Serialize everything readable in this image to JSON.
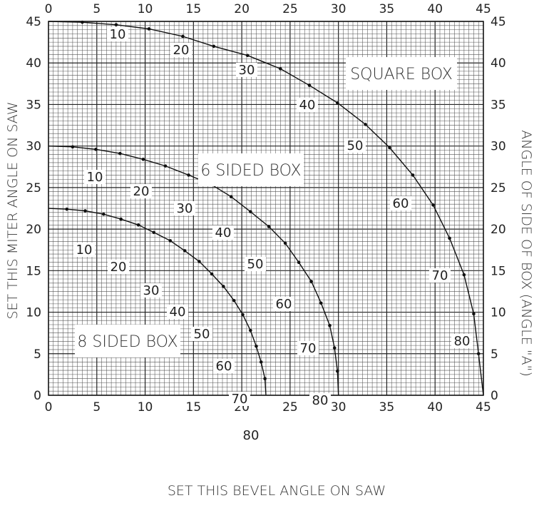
{
  "chart_data": {
    "type": "line",
    "xlabel": "SET THIS BEVEL ANGLE ON SAW",
    "ylabel_left": "SET THIS MITER ANGLE ON SAW",
    "ylabel_right": "ANGLE OF SIDE OF BOX (ANGLE \"A\")",
    "xlim": [
      0,
      45
    ],
    "ylim": [
      0,
      45
    ],
    "x_ticks": [
      "0",
      "5",
      "10",
      "15",
      "20",
      "25",
      "30",
      "35",
      "40",
      "45"
    ],
    "y_ticks": [
      "0",
      "5",
      "10",
      "15",
      "20",
      "25",
      "30",
      "35",
      "40",
      "45"
    ],
    "grid": true,
    "series": [
      {
        "name": "SQUARE BOX",
        "n_sides": 4,
        "angles_A": [
          10,
          20,
          30,
          40,
          50,
          60,
          70,
          80
        ],
        "points": [
          [
            0,
            45
          ],
          [
            3.5,
            44.9
          ],
          [
            7.0,
            44.6
          ],
          [
            10.4,
            44.1
          ],
          [
            13.9,
            43.2
          ],
          [
            17.1,
            42.0
          ],
          [
            20.6,
            40.9
          ],
          [
            24.0,
            39.3
          ],
          [
            27.0,
            37.3
          ],
          [
            29.9,
            35.2
          ],
          [
            32.8,
            32.6
          ],
          [
            35.3,
            29.8
          ],
          [
            37.7,
            26.5
          ],
          [
            39.8,
            22.9
          ],
          [
            41.5,
            18.9
          ],
          [
            43.0,
            14.5
          ],
          [
            44.0,
            9.8
          ],
          [
            44.5,
            5.0
          ],
          [
            45.0,
            0
          ]
        ]
      },
      {
        "name": "6 SIDED BOX",
        "n_sides": 6,
        "angles_A": [
          10,
          20,
          30,
          40,
          50,
          60,
          70,
          80
        ],
        "points": [
          [
            0,
            30
          ],
          [
            2.5,
            29.9
          ],
          [
            4.9,
            29.6
          ],
          [
            7.4,
            29.1
          ],
          [
            9.8,
            28.4
          ],
          [
            12.1,
            27.6
          ],
          [
            14.5,
            26.5
          ],
          [
            16.8,
            25.4
          ],
          [
            18.9,
            23.9
          ],
          [
            20.9,
            22.1
          ],
          [
            22.8,
            20.3
          ],
          [
            24.5,
            18.3
          ],
          [
            25.9,
            16.0
          ],
          [
            27.2,
            13.7
          ],
          [
            28.2,
            11.1
          ],
          [
            29.1,
            8.4
          ],
          [
            29.6,
            5.7
          ],
          [
            29.9,
            2.9
          ],
          [
            30.0,
            0
          ]
        ]
      },
      {
        "name": "8 SIDED BOX",
        "n_sides": 8,
        "angles_A": [
          10,
          20,
          30,
          40,
          50,
          60,
          70,
          80
        ],
        "points": [
          [
            0,
            22.5
          ],
          [
            1.9,
            22.4
          ],
          [
            3.8,
            22.2
          ],
          [
            5.7,
            21.8
          ],
          [
            7.5,
            21.2
          ],
          [
            9.3,
            20.5
          ],
          [
            10.9,
            19.6
          ],
          [
            12.6,
            18.6
          ],
          [
            14.1,
            17.4
          ],
          [
            15.6,
            16.1
          ],
          [
            16.9,
            14.6
          ],
          [
            18.1,
            13.1
          ],
          [
            19.2,
            11.4
          ],
          [
            20.1,
            9.7
          ],
          [
            20.9,
            7.8
          ],
          [
            21.5,
            5.9
          ],
          [
            22.0,
            4.0
          ],
          [
            22.4,
            2.0
          ],
          [
            22.5,
            0
          ]
        ]
      }
    ],
    "box_labels": [
      "SQUARE BOX",
      "6 SIDED BOX",
      "8 SIDED BOX"
    ],
    "curve_labels": [
      "10",
      "20",
      "30",
      "40",
      "50",
      "60",
      "70",
      "80"
    ]
  }
}
